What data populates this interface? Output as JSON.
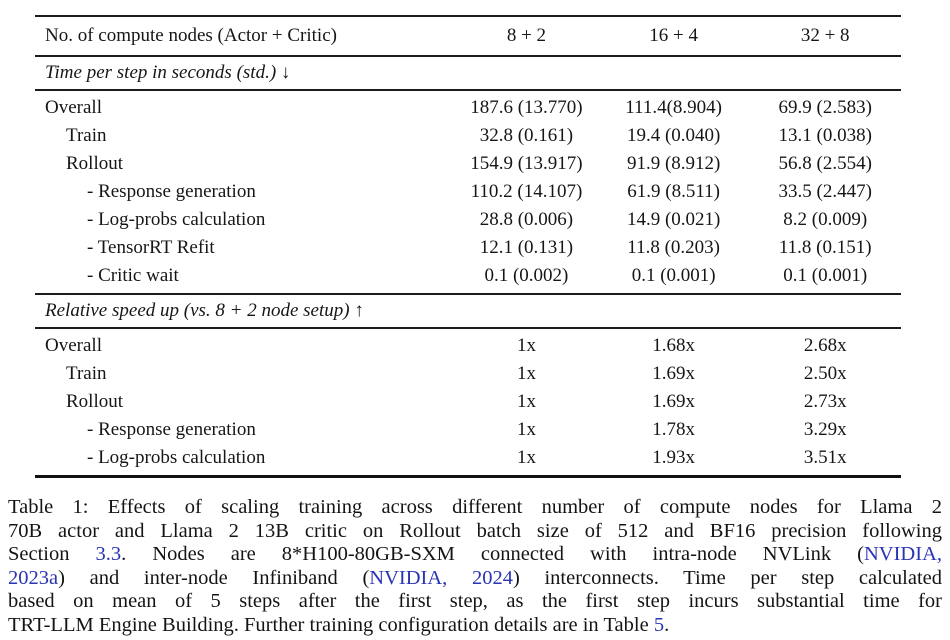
{
  "table": {
    "header": {
      "label": "No. of compute nodes (Actor + Critic)",
      "columns": [
        "8 + 2",
        "16 + 4",
        "32 + 8"
      ]
    },
    "sections": [
      {
        "title": "Time per step in seconds (std.) ↓",
        "rows": [
          {
            "label": "Overall",
            "indent": 0,
            "values": [
              "187.6 (13.770)",
              "111.4(8.904)",
              "69.9 (2.583)"
            ]
          },
          {
            "label": "Train",
            "indent": 1,
            "values": [
              "32.8 (0.161)",
              "19.4 (0.040)",
              "13.1 (0.038)"
            ]
          },
          {
            "label": "Rollout",
            "indent": 1,
            "values": [
              "154.9 (13.917)",
              "91.9 (8.912)",
              "56.8 (2.554)"
            ]
          },
          {
            "label": "- Response generation",
            "indent": 2,
            "values": [
              "110.2 (14.107)",
              "61.9 (8.511)",
              "33.5 (2.447)"
            ]
          },
          {
            "label": "- Log-probs calculation",
            "indent": 2,
            "values": [
              "28.8 (0.006)",
              "14.9 (0.021)",
              "8.2 (0.009)"
            ]
          },
          {
            "label": "- TensorRT Refit",
            "indent": 2,
            "values": [
              "12.1 (0.131)",
              "11.8 (0.203)",
              "11.8 (0.151)"
            ]
          },
          {
            "label": "- Critic wait",
            "indent": 2,
            "values": [
              "0.1 (0.002)",
              "0.1 (0.001)",
              "0.1 (0.001)"
            ]
          }
        ]
      },
      {
        "title": "Relative speed up (vs. 8 + 2 node setup) ↑",
        "rows": [
          {
            "label": "Overall",
            "indent": 0,
            "values": [
              "1x",
              "1.68x",
              "2.68x"
            ]
          },
          {
            "label": "Train",
            "indent": 1,
            "values": [
              "1x",
              "1.69x",
              "2.50x"
            ]
          },
          {
            "label": "Rollout",
            "indent": 1,
            "values": [
              "1x",
              "1.69x",
              "2.73x"
            ]
          },
          {
            "label": "- Response generation",
            "indent": 2,
            "values": [
              "1x",
              "1.78x",
              "3.29x"
            ]
          },
          {
            "label": "- Log-probs calculation",
            "indent": 2,
            "values": [
              "1x",
              "1.93x",
              "3.51x"
            ]
          }
        ]
      }
    ]
  },
  "caption": {
    "link_color": "#2a35b5",
    "lines": [
      [
        {
          "text": "Table 1: Effects of scaling training across different number of compute nodes for Llama 2"
        }
      ],
      [
        {
          "text": "70B actor and Llama 2 13B critic on Rollout batch size of 512 and BF16 precision following"
        }
      ],
      [
        {
          "text": "Section "
        },
        {
          "text": "3.3",
          "link": true
        },
        {
          "text": ". Nodes are 8*H100-80GB-SXM connected with intra-node NVLink ("
        },
        {
          "text": "NVIDIA,",
          "link": true
        }
      ],
      [
        {
          "text": "2023a",
          "link": true
        },
        {
          "text": ") and inter-node Infiniband ("
        },
        {
          "text": "NVIDIA, 2024",
          "link": true
        },
        {
          "text": ") interconnects. Time per step calculated"
        }
      ],
      [
        {
          "text": "based on mean of 5 steps after the first step, as the first step incurs substantial time for"
        }
      ],
      [
        {
          "text": "TRT-LLM Engine Building. Further training configuration details are in Table "
        },
        {
          "text": "5",
          "link": true
        },
        {
          "text": "."
        }
      ]
    ]
  }
}
